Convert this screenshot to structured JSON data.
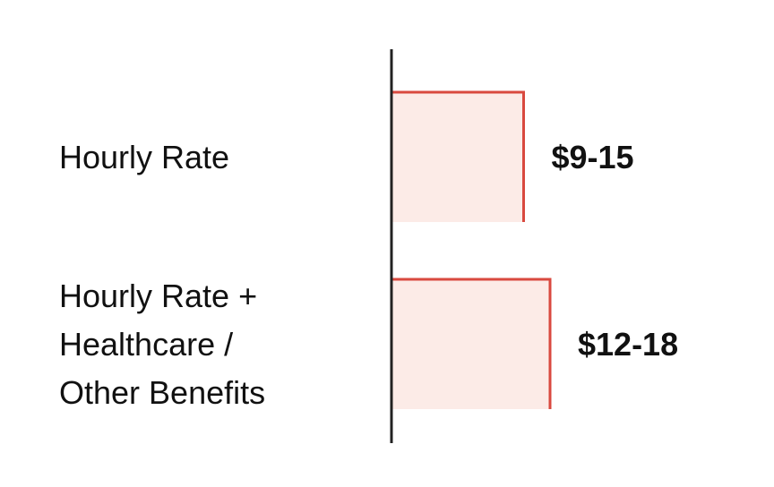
{
  "chart_data": {
    "type": "range-bar",
    "categories": [
      [
        "Hourly Rate"
      ],
      [
        "Hourly Rate +",
        "Healthcare /",
        "Other Benefits"
      ]
    ],
    "values": [
      [
        9,
        15
      ],
      [
        12,
        18
      ]
    ],
    "value_labels": [
      "$9-15",
      "$12-18"
    ],
    "color": "#d9493f",
    "fill": "#fcebe7"
  }
}
